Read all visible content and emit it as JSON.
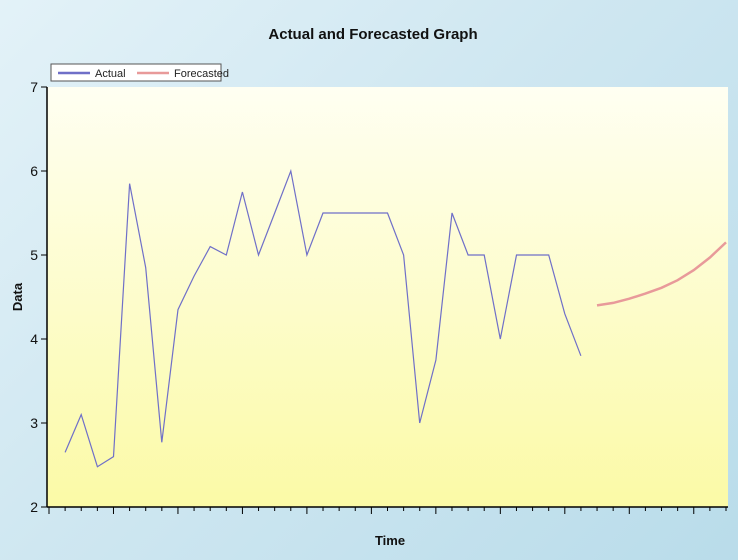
{
  "chart_data": {
    "type": "line",
    "title": "Actual and Forecasted Graph",
    "xlabel": "Time",
    "ylabel": "Data",
    "ylim": [
      2,
      7
    ],
    "yticks": [
      2,
      3,
      4,
      5,
      6,
      7
    ],
    "legend_position": "top-left",
    "grid": false,
    "series": [
      {
        "name": "Actual",
        "color": "#6f6fc8",
        "x": [
          1,
          2,
          3,
          4,
          5,
          6,
          7,
          8,
          9,
          10,
          11,
          12,
          13,
          14,
          15,
          16,
          17,
          18,
          19,
          20,
          21,
          22,
          23,
          24,
          25,
          26,
          27,
          28,
          29,
          30,
          31,
          32,
          33,
          34
        ],
        "values": [
          2.65,
          3.1,
          2.48,
          2.6,
          5.85,
          4.85,
          2.77,
          4.35,
          4.75,
          5.1,
          5.0,
          5.75,
          5.0,
          5.5,
          6.0,
          5.0,
          5.5,
          5.5,
          5.5,
          5.5,
          5.5,
          5.0,
          3.0,
          3.75,
          5.5,
          5.0,
          5.0,
          4.0,
          5.0,
          5.0,
          5.0,
          4.3,
          3.8,
          null
        ]
      },
      {
        "name": "Forecasted",
        "color": "#e89a9a",
        "x": [
          34,
          35,
          36,
          37,
          38,
          39,
          40,
          41,
          42
        ],
        "values": [
          4.4,
          4.43,
          4.48,
          4.54,
          4.61,
          4.7,
          4.82,
          4.97,
          5.15
        ]
      }
    ]
  }
}
